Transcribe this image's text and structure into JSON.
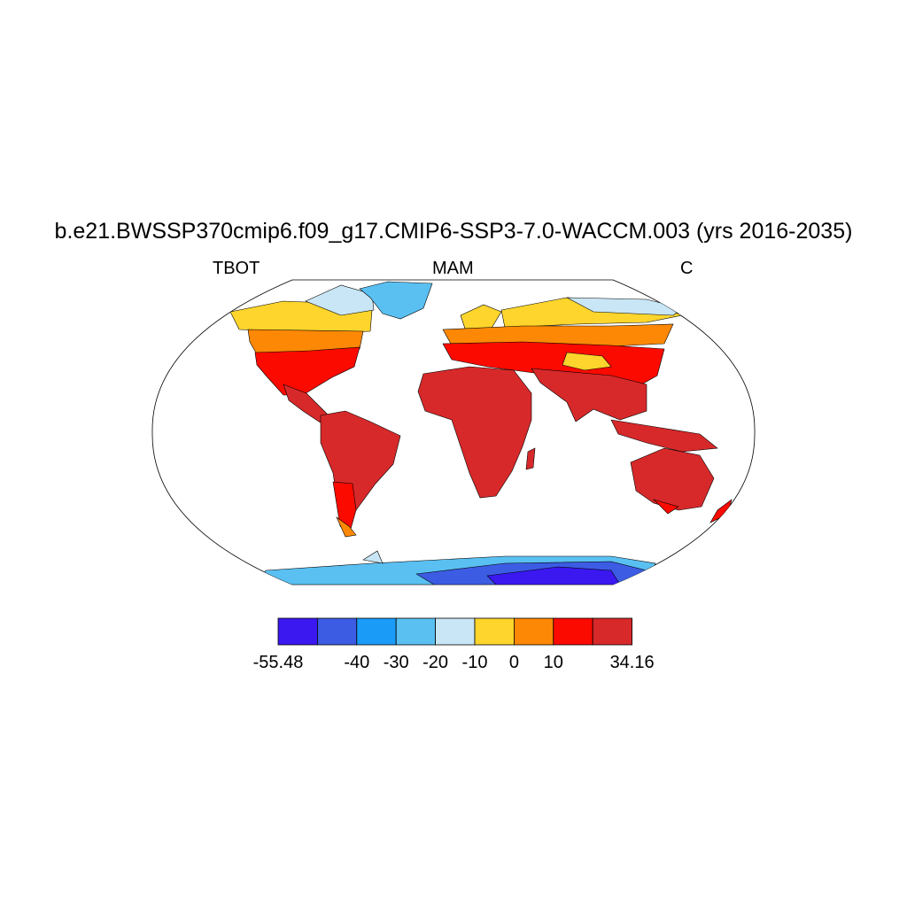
{
  "title": "b.e21.BWSSP370cmip6.f09_g17.CMIP6-SSP3-7.0-WACCM.003 (yrs 2016-2035)",
  "subtitle_left": "TBOT",
  "subtitle_center": "MAM",
  "subtitle_right": "C",
  "colorbar": {
    "colors": [
      "#3b17f0",
      "#3c5ce4",
      "#1a9bf8",
      "#5ac0f2",
      "#c8e6f5",
      "#fdd52c",
      "#fc8805",
      "#fb0a00",
      "#d7292a"
    ],
    "labels": [
      "-55.48",
      "-40",
      "-30",
      "-20",
      "-10",
      "0",
      "10",
      "34.16"
    ],
    "label_boundaries": [
      0,
      2,
      3,
      4,
      5,
      6,
      7,
      9
    ]
  }
}
